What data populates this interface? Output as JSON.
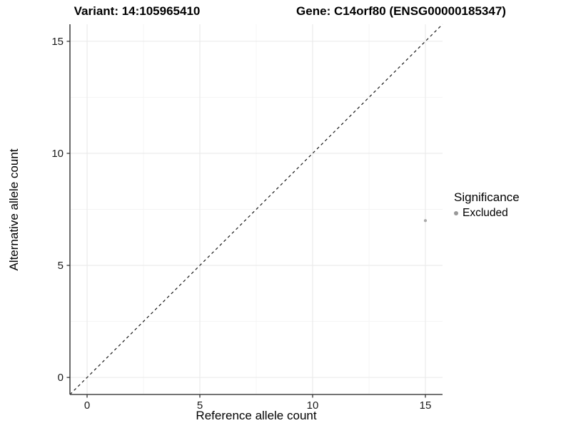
{
  "titles": {
    "variant": "Variant: 14:105965410",
    "gene": "Gene: C14orf80 (ENSG00000185347)"
  },
  "axes": {
    "x_label": "Reference allele count",
    "y_label": "Alternative allele count"
  },
  "legend": {
    "title": "Significance",
    "items": [
      {
        "label": "Excluded",
        "color": "#999999"
      }
    ]
  },
  "chart_data": {
    "type": "scatter",
    "title_left": "Variant: 14:105965410",
    "title_right": "Gene: C14orf80 (ENSG00000185347)",
    "xlabel": "Reference allele count",
    "ylabel": "Alternative allele count",
    "xlim": [
      -0.76,
      15.76
    ],
    "ylim": [
      -0.76,
      15.76
    ],
    "x_ticks": [
      0,
      5,
      10,
      15
    ],
    "y_ticks": [
      0,
      5,
      10,
      15
    ],
    "x_minor_ticks": [
      2.5,
      7.5,
      12.5
    ],
    "y_minor_ticks": [
      2.5,
      7.5,
      12.5
    ],
    "grid": true,
    "legend_position": "right",
    "reference_line": {
      "type": "identity",
      "style": "dashed",
      "color": "#1a1a1a"
    },
    "series": [
      {
        "name": "Excluded",
        "color": "#aaaaaa",
        "points": [
          {
            "x": 15,
            "y": 7
          }
        ]
      }
    ],
    "point_radius": 2.1,
    "colors": {
      "axis_line": "#474747",
      "tick_mark": "#333333",
      "tick_label": "#1a1a1a",
      "grid_major": "#e9e9e9",
      "grid_minor": "#f4f4f4"
    }
  }
}
